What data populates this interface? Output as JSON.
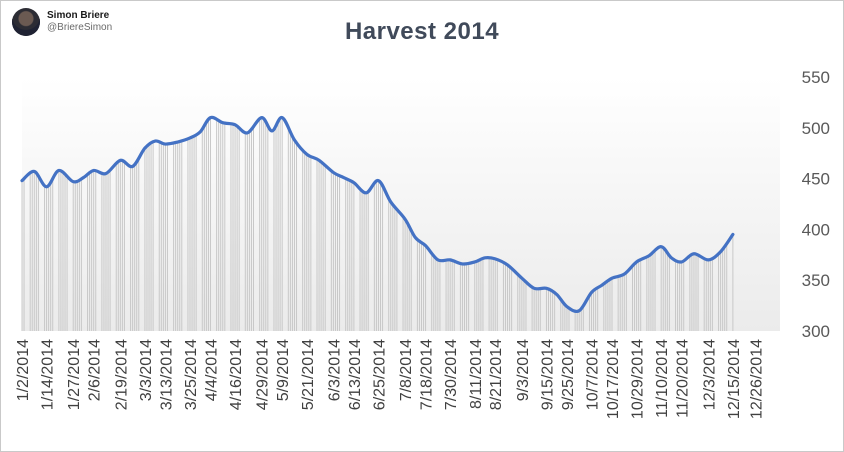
{
  "author": {
    "name": "Simon Briere",
    "handle": "@BriereSimon"
  },
  "chart_data": {
    "type": "area",
    "title": "Harvest  2014",
    "xlabel": "",
    "ylabel": "",
    "ylim": [
      300,
      550
    ],
    "yticks": [
      300,
      350,
      400,
      450,
      500,
      550
    ],
    "y_axis_side": "right",
    "xlim": [
      "2014-01-02",
      "2015-01-07"
    ],
    "xticks": [
      "1/2/2014",
      "1/14/2014",
      "1/27/2014",
      "2/6/2014",
      "2/19/2014",
      "3/3/2014",
      "3/13/2014",
      "3/25/2014",
      "4/4/2014",
      "4/16/2014",
      "4/29/2014",
      "5/9/2014",
      "5/21/2014",
      "6/3/2014",
      "6/13/2014",
      "6/25/2014",
      "7/8/2014",
      "7/18/2014",
      "7/30/2014",
      "8/11/2014",
      "8/21/2014",
      "9/3/2014",
      "9/15/2014",
      "9/25/2014",
      "10/7/2014",
      "10/17/2014",
      "10/29/2014",
      "11/10/2014",
      "11/20/2014",
      "12/3/2014",
      "12/15/2014",
      "12/26/2014"
    ],
    "grid": false,
    "legend": "none",
    "colors": {
      "line": "#4472c4",
      "bars": "#c8c8c8",
      "plot_bg_top": "#ffffff",
      "plot_bg_bottom": "#ebebeb"
    },
    "series": [
      {
        "x": [
          "2014-01-02",
          "2014-01-08",
          "2014-01-14",
          "2014-01-20",
          "2014-01-27",
          "2014-02-01",
          "2014-02-06",
          "2014-02-12",
          "2014-02-19",
          "2014-02-25",
          "2014-03-03",
          "2014-03-08",
          "2014-03-13",
          "2014-03-19",
          "2014-03-25",
          "2014-03-30",
          "2014-04-04",
          "2014-04-10",
          "2014-04-16",
          "2014-04-22",
          "2014-04-29",
          "2014-05-04",
          "2014-05-09",
          "2014-05-15",
          "2014-05-21",
          "2014-05-27",
          "2014-06-03",
          "2014-06-08",
          "2014-06-13",
          "2014-06-19",
          "2014-06-25",
          "2014-07-01",
          "2014-07-08",
          "2014-07-13",
          "2014-07-18",
          "2014-07-24",
          "2014-07-30",
          "2014-08-05",
          "2014-08-11",
          "2014-08-16",
          "2014-08-21",
          "2014-08-27",
          "2014-09-03",
          "2014-09-09",
          "2014-09-15",
          "2014-09-20",
          "2014-09-25",
          "2014-10-01",
          "2014-10-07",
          "2014-10-12",
          "2014-10-17",
          "2014-10-23",
          "2014-10-29",
          "2014-11-04",
          "2014-11-10",
          "2014-11-15",
          "2014-11-20",
          "2014-11-26",
          "2014-12-03",
          "2014-12-09",
          "2014-12-15"
        ],
        "y": [
          448,
          457,
          442,
          458,
          447,
          451,
          458,
          455,
          468,
          462,
          480,
          487,
          484,
          486,
          490,
          496,
          510,
          505,
          503,
          495,
          510,
          497,
          510,
          488,
          474,
          468,
          456,
          451,
          446,
          436,
          448,
          427,
          410,
          392,
          384,
          370,
          370,
          366,
          368,
          372,
          371,
          365,
          352,
          342,
          342,
          336,
          324,
          320,
          338,
          345,
          352,
          356,
          368,
          374,
          383,
          372,
          368,
          376,
          370,
          378,
          395
        ]
      }
    ]
  }
}
